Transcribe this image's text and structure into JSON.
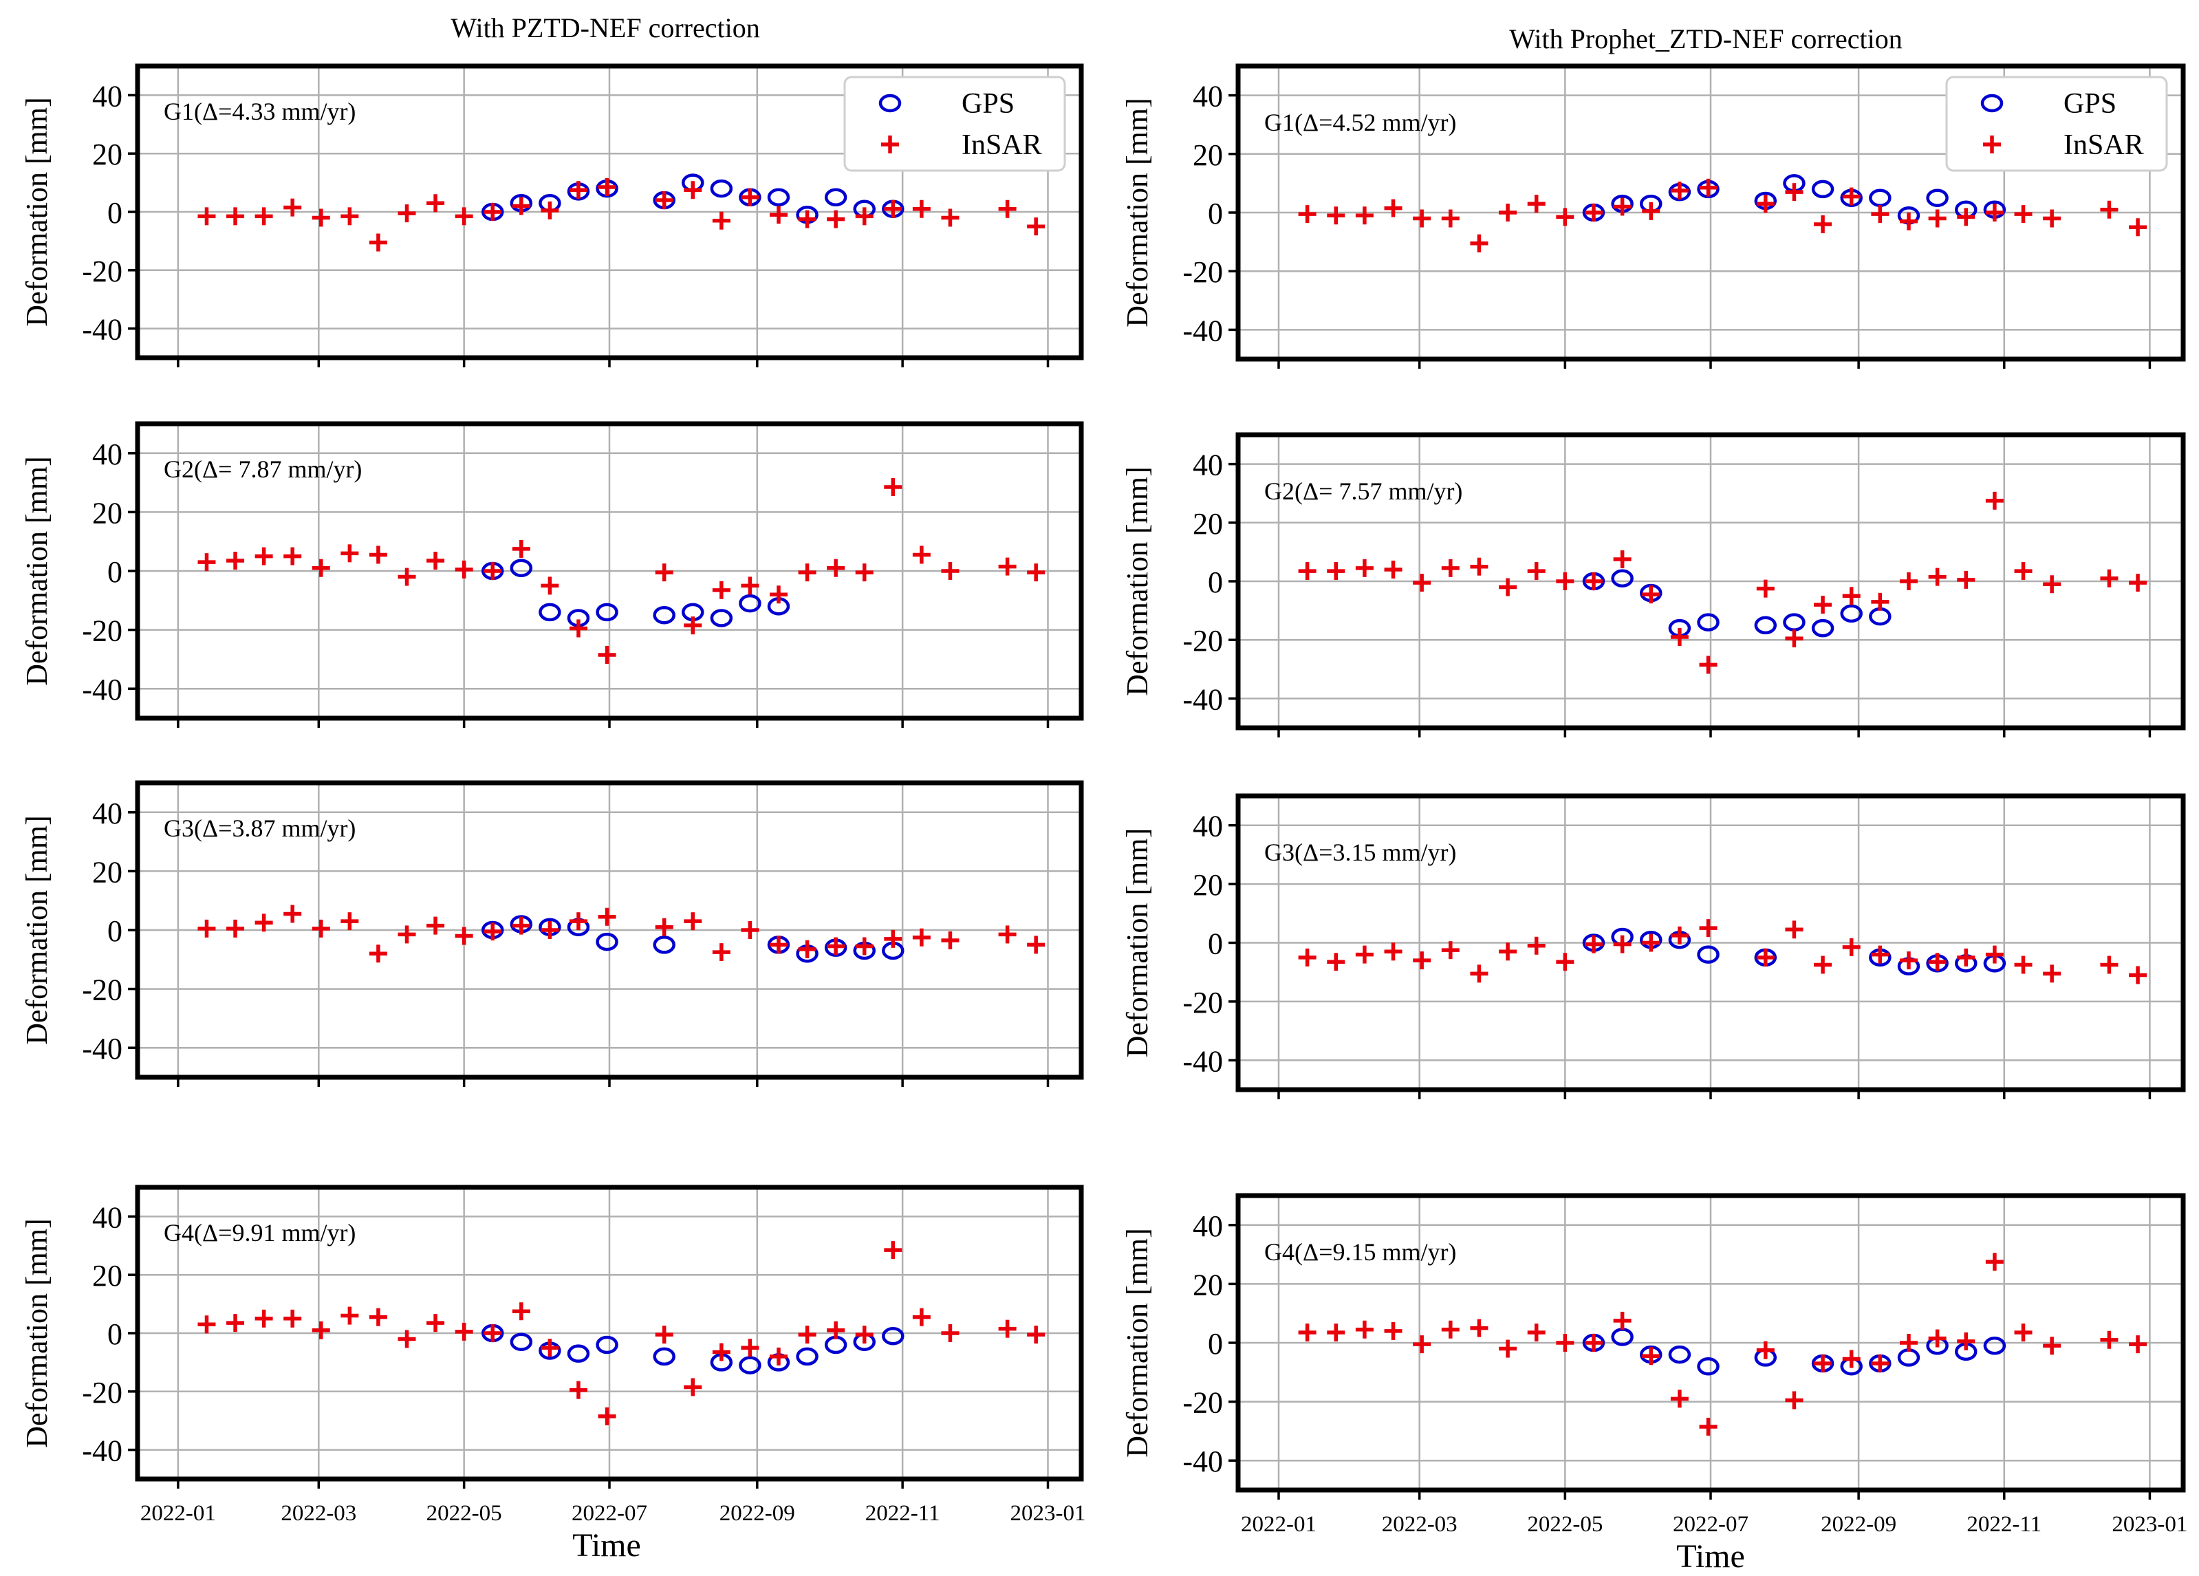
{
  "chart_data": {
    "type": "scatter",
    "xlabel": "Time",
    "ylabel": "Deformation [mm]",
    "ylim": [
      -50,
      50
    ],
    "yticks": [
      40,
      20,
      0,
      -20,
      -40
    ],
    "xlim": [
      "2021-12-15",
      "2023-01-15"
    ],
    "xticks": [
      {
        "date": "2022-01-01",
        "label": "2022-01"
      },
      {
        "date": "2022-03-01",
        "label": "2022-03"
      },
      {
        "date": "2022-05-01",
        "label": "2022-05"
      },
      {
        "date": "2022-07-01",
        "label": "2022-07"
      },
      {
        "date": "2022-09-01",
        "label": "2022-09"
      },
      {
        "date": "2022-11-01",
        "label": "2022-11"
      },
      {
        "date": "2023-01-01",
        "label": "2023-01"
      }
    ],
    "legend": {
      "position": "top-right",
      "entries": [
        "GPS",
        "InSAR"
      ]
    },
    "insar_dates": [
      "2022-01-13",
      "2022-01-25",
      "2022-02-06",
      "2022-02-18",
      "2022-03-02",
      "2022-03-14",
      "2022-03-26",
      "2022-04-07",
      "2022-04-19",
      "2022-05-01",
      "2022-05-13",
      "2022-05-25",
      "2022-06-06",
      "2022-06-18",
      "2022-06-30",
      "2022-07-24",
      "2022-08-05",
      "2022-08-17",
      "2022-08-29",
      "2022-09-10",
      "2022-09-22",
      "2022-10-04",
      "2022-10-16",
      "2022-10-28",
      "2022-11-09",
      "2022-11-21",
      "2022-12-15",
      "2022-12-27"
    ],
    "gps_dates": [
      "2022-05-13",
      "2022-05-25",
      "2022-06-06",
      "2022-06-18",
      "2022-06-30",
      "2022-07-24",
      "2022-08-05",
      "2022-08-17",
      "2022-08-29",
      "2022-09-10",
      "2022-09-22",
      "2022-10-04",
      "2022-10-16",
      "2022-10-28"
    ],
    "columns": [
      {
        "title": "With PZTD-NEF correction",
        "panels": [
          {
            "label": "G1(Δ=4.33 mm/yr)",
            "insar": [
              -1.5,
              -1.5,
              -1.5,
              1.5,
              -2,
              -1.5,
              -10.5,
              -0.5,
              3,
              -1.5,
              0,
              2,
              0.5,
              7.5,
              8.5,
              4,
              7.5,
              -3,
              5,
              -1,
              -2.5,
              -2.5,
              -1.5,
              1,
              1,
              -2,
              1,
              -5
            ],
            "gps": [
              0,
              3,
              3,
              7,
              8,
              4,
              10,
              8,
              5,
              5,
              -1,
              5,
              1,
              1
            ]
          },
          {
            "label": "G2(Δ= 7.87 mm/yr)",
            "insar": [
              3,
              3.5,
              5,
              5,
              1,
              6,
              5.5,
              -2,
              3.5,
              0.5,
              0,
              7.5,
              -5,
              -19.5,
              -28.5,
              -0.5,
              -18.5,
              -6.5,
              -5,
              -8,
              -0.5,
              1,
              -0.5,
              28.5,
              5.5,
              0,
              1.5,
              -0.5
            ],
            "gps": [
              0,
              1,
              -14,
              -16,
              -14,
              -15,
              -14,
              -16,
              -11,
              -12,
              null,
              null,
              null,
              null
            ]
          },
          {
            "label": "G3(Δ=3.87 mm/yr)",
            "insar": [
              0.5,
              0.5,
              2.5,
              5.5,
              0.5,
              3,
              -8,
              -1.5,
              1.5,
              -2,
              -0.5,
              1.5,
              0,
              3,
              4.5,
              1,
              3,
              -7.5,
              0,
              -5,
              -6.5,
              -5.5,
              -5.5,
              -3,
              -2.5,
              -3.5,
              -1.5,
              -5
            ],
            "gps": [
              0,
              2,
              1,
              1,
              -4,
              -5,
              null,
              null,
              null,
              -5,
              -8,
              -6,
              -7,
              -7
            ]
          },
          {
            "label": "G4(Δ=9.91 mm/yr)",
            "insar": [
              3,
              3.5,
              5,
              5,
              1,
              6,
              5.5,
              -2,
              3.5,
              0.5,
              0,
              7.5,
              -5,
              -19.5,
              -28.5,
              -0.5,
              -18.5,
              -6.5,
              -5,
              -8,
              -0.5,
              1,
              -0.5,
              28.5,
              5.5,
              0,
              1.5,
              -0.5
            ],
            "gps": [
              0,
              -3,
              -6,
              -7,
              -4,
              -8,
              null,
              -10,
              -11,
              -10,
              -8,
              -4,
              -3,
              -1
            ]
          }
        ]
      },
      {
        "title": "With Prophet_ZTD-NEF correction",
        "panels": [
          {
            "label": "G1(Δ=4.52 mm/yr)",
            "insar": [
              -0.5,
              -1,
              -1,
              1.5,
              -2,
              -2,
              -10.5,
              0,
              3,
              -1.5,
              0,
              2,
              0.5,
              7.5,
              8.5,
              3,
              7,
              -4,
              5.5,
              -0.5,
              -3,
              -2,
              -1.5,
              0,
              -0.5,
              -2,
              1,
              -5
            ],
            "gps": [
              0,
              3,
              3,
              7,
              8,
              4,
              10,
              8,
              5,
              5,
              -1,
              5,
              1,
              1
            ]
          },
          {
            "label": "G2(Δ= 7.57 mm/yr)",
            "insar": [
              3.5,
              3.5,
              4.5,
              4,
              -0.5,
              4.5,
              5,
              -2,
              3.5,
              0,
              0,
              7.5,
              -4.5,
              -19,
              -28.5,
              -2.5,
              -19.5,
              -8,
              -5,
              -7,
              0,
              1.5,
              0.5,
              27.5,
              3.5,
              -1,
              1,
              -0.5
            ],
            "gps": [
              0,
              1,
              -4,
              -16,
              -14,
              -15,
              -14,
              -16,
              -11,
              -12,
              null,
              null,
              null,
              null
            ]
          },
          {
            "label": "G3(Δ=3.15 mm/yr)",
            "insar": [
              -5,
              -6.5,
              -4,
              -3,
              -6,
              -2.5,
              -10.5,
              -3,
              -1,
              -6.5,
              -0.5,
              -0.5,
              0,
              2.5,
              5,
              -5,
              4.5,
              -7.5,
              -1.5,
              -4,
              -6,
              -6.5,
              -5,
              -4,
              -7.5,
              -10.5,
              -7.5,
              -11
            ],
            "gps": [
              0,
              2,
              1,
              1,
              -4,
              -5,
              null,
              null,
              null,
              -5,
              -8,
              -7,
              -7,
              -7
            ]
          },
          {
            "label": "G4(Δ=9.15 mm/yr)",
            "insar": [
              3.5,
              3.5,
              4.5,
              4,
              -0.5,
              4.5,
              5,
              -2,
              3.5,
              0,
              0,
              7.5,
              -4.5,
              -19,
              -28.5,
              -2.5,
              -19.5,
              -7,
              -5.5,
              -7,
              0,
              1.5,
              0.5,
              27.5,
              3.5,
              -1,
              1,
              -0.5
            ],
            "gps": [
              0,
              2,
              -4,
              -4,
              -8,
              -5,
              null,
              -7,
              -8,
              -7,
              -5,
              -1,
              -3,
              -1
            ]
          }
        ]
      }
    ]
  }
}
